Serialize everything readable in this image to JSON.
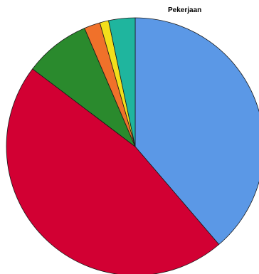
{
  "chart_data": {
    "type": "pie",
    "title": "",
    "legend": {
      "title": "Pekerjaan",
      "placement": "top-right",
      "entries": []
    },
    "slices": [
      {
        "value": 38.5,
        "color": "#5b98e6"
      },
      {
        "value": 46.3,
        "color": "#d20033"
      },
      {
        "value": 8.2,
        "color": "#2a8a2d"
      },
      {
        "value": 2.0,
        "color": "#f0712a"
      },
      {
        "value": 1.1,
        "color": "#f3df1b"
      },
      {
        "value": 3.3,
        "color": "#1fb59e"
      }
    ],
    "start_angle_deg": 0,
    "direction": "clockwise"
  }
}
